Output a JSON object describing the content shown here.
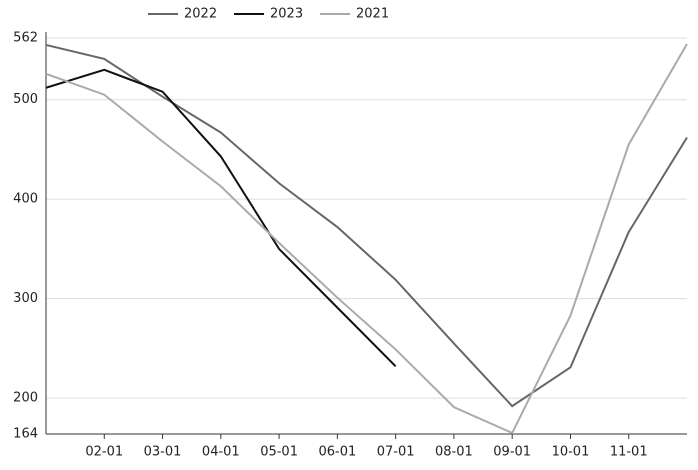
{
  "chart_data": {
    "type": "line",
    "categories": [
      null,
      "02-01",
      "03-01",
      "04-01",
      "05-01",
      "06-01",
      "07-01",
      "08-01",
      "09-01",
      "10-01",
      "11-01",
      null
    ],
    "series": [
      {
        "name": "2022",
        "color": "#666666",
        "values": [
          555,
          541,
          503,
          467,
          416,
          372,
          319,
          255,
          192,
          231,
          367,
          462
        ]
      },
      {
        "name": "2023",
        "color": "#111111",
        "values": [
          512,
          530,
          508,
          443,
          350,
          291,
          232,
          null,
          null,
          null,
          null,
          null
        ]
      },
      {
        "name": "2021",
        "color": "#aaaaaa",
        "values": [
          526,
          505,
          458,
          413,
          356,
          301,
          249,
          191,
          165,
          283,
          455,
          556
        ]
      }
    ],
    "ylim": [
      164,
      562
    ],
    "yticks": [
      164,
      200,
      300,
      400,
      500,
      562
    ],
    "grid": true
  }
}
